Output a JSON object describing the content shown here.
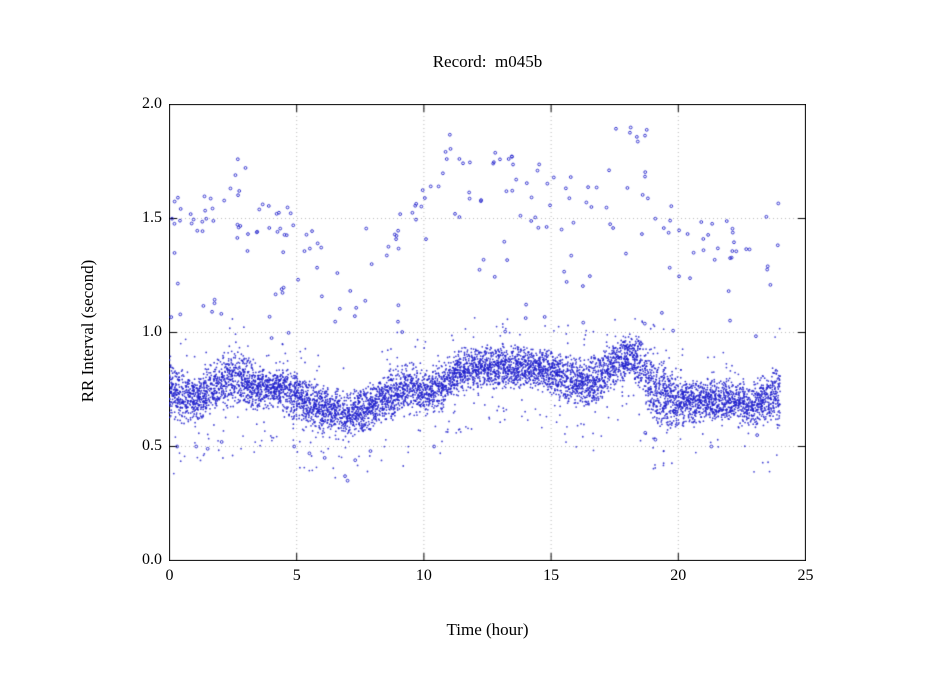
{
  "page": {
    "background": "#ffffff"
  },
  "chart_data": {
    "type": "scatter",
    "title": "Record:  m045b",
    "xlabel": "Time (hour)",
    "ylabel": "RR Interval (second)",
    "xlim": [
      0,
      25
    ],
    "ylim": [
      0.0,
      2.0
    ],
    "xticks": [
      0,
      5,
      10,
      15,
      20,
      25
    ],
    "xtick_labels": [
      "0",
      "5",
      "10",
      "15",
      "20",
      "25"
    ],
    "yticks": [
      0.0,
      0.5,
      1.0,
      1.5,
      2.0
    ],
    "ytick_labels": [
      "0.0",
      "0.5",
      "1.0",
      "1.5",
      "2.0"
    ],
    "grid": true,
    "legend": "none",
    "marker_color": "#2222cc",
    "grid_color": "#b9b9b9",
    "frame_color": "#000000",
    "band": {
      "seed": 42,
      "n_points": 7600,
      "x_max": 24,
      "profile": [
        [
          0.0,
          0.76,
          0.12
        ],
        [
          0.4,
          0.72,
          0.1
        ],
        [
          1.0,
          0.7,
          0.09
        ],
        [
          1.5,
          0.74,
          0.09
        ],
        [
          2.0,
          0.78,
          0.1
        ],
        [
          2.5,
          0.8,
          0.1
        ],
        [
          3.0,
          0.78,
          0.1
        ],
        [
          3.6,
          0.75,
          0.08
        ],
        [
          4.2,
          0.76,
          0.07
        ],
        [
          5.0,
          0.72,
          0.09
        ],
        [
          5.6,
          0.68,
          0.09
        ],
        [
          6.2,
          0.66,
          0.09
        ],
        [
          7.0,
          0.63,
          0.09
        ],
        [
          7.6,
          0.66,
          0.09
        ],
        [
          8.2,
          0.69,
          0.08
        ],
        [
          9.0,
          0.74,
          0.1
        ],
        [
          9.6,
          0.76,
          0.1
        ],
        [
          10.2,
          0.74,
          0.09
        ],
        [
          10.8,
          0.78,
          0.09
        ],
        [
          11.4,
          0.83,
          0.08
        ],
        [
          12.0,
          0.85,
          0.08
        ],
        [
          13.0,
          0.85,
          0.08
        ],
        [
          14.0,
          0.85,
          0.08
        ],
        [
          15.0,
          0.83,
          0.08
        ],
        [
          15.6,
          0.8,
          0.09
        ],
        [
          16.2,
          0.77,
          0.09
        ],
        [
          16.8,
          0.79,
          0.09
        ],
        [
          17.4,
          0.85,
          0.08
        ],
        [
          18.0,
          0.9,
          0.08
        ],
        [
          18.4,
          0.88,
          0.09
        ],
        [
          18.8,
          0.8,
          0.12
        ],
        [
          19.2,
          0.74,
          0.13
        ],
        [
          19.6,
          0.71,
          0.11
        ],
        [
          20.0,
          0.7,
          0.09
        ],
        [
          21.0,
          0.7,
          0.08
        ],
        [
          22.0,
          0.7,
          0.08
        ],
        [
          22.6,
          0.68,
          0.09
        ],
        [
          23.2,
          0.7,
          0.09
        ],
        [
          23.7,
          0.72,
          0.1
        ],
        [
          24.0,
          0.73,
          0.12
        ]
      ]
    },
    "outlier_clusters": [
      [
        0.05,
        0.45,
        1.0,
        1.62,
        10
      ],
      [
        0.6,
        1.3,
        1.32,
        1.52,
        6
      ],
      [
        1.3,
        2.2,
        1.45,
        1.62,
        7
      ],
      [
        1.5,
        2.1,
        1.05,
        1.15,
        4
      ],
      [
        2.2,
        3.0,
        1.55,
        1.78,
        6
      ],
      [
        2.4,
        3.6,
        1.35,
        1.55,
        8
      ],
      [
        3.5,
        4.7,
        1.4,
        1.58,
        7
      ],
      [
        4.2,
        5.4,
        1.43,
        1.56,
        6
      ],
      [
        4.4,
        5.6,
        1.18,
        1.36,
        5
      ],
      [
        5.3,
        6.5,
        1.28,
        1.45,
        6
      ],
      [
        5.8,
        7.7,
        1.08,
        1.3,
        6
      ],
      [
        7.7,
        9.2,
        1.28,
        1.47,
        7
      ],
      [
        8.6,
        10.2,
        1.35,
        1.65,
        9
      ],
      [
        9.8,
        10.7,
        1.52,
        1.66,
        4
      ],
      [
        10.7,
        11.7,
        1.5,
        1.87,
        8
      ],
      [
        11.3,
        13.5,
        1.55,
        1.8,
        14
      ],
      [
        11.6,
        13.4,
        1.2,
        1.45,
        5
      ],
      [
        13.2,
        14.7,
        1.5,
        1.75,
        9
      ],
      [
        14.2,
        16.2,
        1.45,
        1.7,
        11
      ],
      [
        15.5,
        16.7,
        1.1,
        1.35,
        5
      ],
      [
        16.2,
        17.2,
        1.45,
        1.65,
        5
      ],
      [
        17.2,
        18.9,
        1.58,
        1.9,
        13
      ],
      [
        17.3,
        18.6,
        1.3,
        1.5,
        4
      ],
      [
        18.9,
        19.9,
        1.4,
        1.6,
        5
      ],
      [
        19.5,
        21.2,
        1.2,
        1.45,
        7
      ],
      [
        20.5,
        22.6,
        1.3,
        1.5,
        9
      ],
      [
        22.0,
        23.6,
        1.3,
        1.5,
        7
      ],
      [
        23.4,
        24.0,
        1.1,
        1.58,
        6
      ],
      [
        0.5,
        23.8,
        0.95,
        1.2,
        22
      ]
    ],
    "low_points": [
      [
        0.3,
        0.5
      ],
      [
        1.05,
        0.5
      ],
      [
        1.5,
        0.49
      ],
      [
        2.05,
        0.52
      ],
      [
        4.9,
        0.5
      ],
      [
        5.5,
        0.47
      ],
      [
        6.1,
        0.45
      ],
      [
        6.9,
        0.37
      ],
      [
        7.0,
        0.35
      ],
      [
        7.3,
        0.44
      ],
      [
        7.9,
        0.48
      ],
      [
        10.4,
        0.5
      ],
      [
        18.7,
        0.56
      ],
      [
        19.1,
        0.53
      ],
      [
        21.3,
        0.5
      ],
      [
        23.1,
        0.55
      ]
    ]
  }
}
